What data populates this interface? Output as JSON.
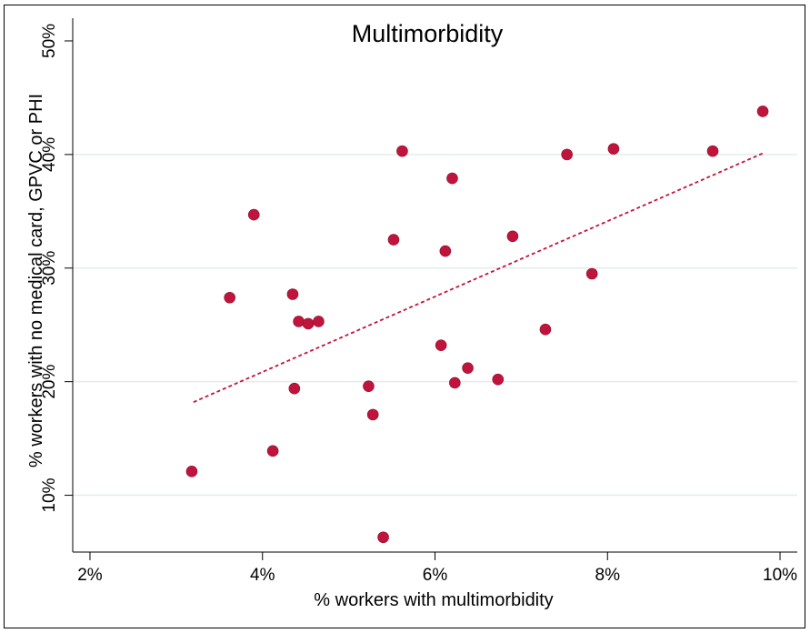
{
  "chart_data": {
    "type": "scatter",
    "title": "Multimorbidity",
    "xlabel": "% workers with multimorbidity",
    "ylabel": "% workers with no medical card, GPVC or PHI",
    "xlim": [
      1.8,
      10.2
    ],
    "ylim": [
      5,
      52
    ],
    "x_ticks": [
      2,
      4,
      6,
      8,
      10
    ],
    "x_tick_labels": [
      "2%",
      "4%",
      "6%",
      "8%",
      "10%"
    ],
    "y_ticks": [
      10,
      20,
      30,
      40,
      50
    ],
    "y_tick_labels": [
      "10%",
      "20%",
      "30%",
      "40%",
      "50%"
    ],
    "grid": "horizontal",
    "legend": "none",
    "colors": {
      "points": "#c0143c",
      "fit_line": "#c0143c",
      "grid": "#e4ecec"
    },
    "fit_line": {
      "x": [
        3.2,
        9.8
      ],
      "y": [
        18.2,
        40.1
      ]
    },
    "points": [
      {
        "x": 3.18,
        "y": 12.1
      },
      {
        "x": 3.62,
        "y": 27.4
      },
      {
        "x": 3.9,
        "y": 34.7
      },
      {
        "x": 4.12,
        "y": 13.9
      },
      {
        "x": 4.35,
        "y": 27.7
      },
      {
        "x": 4.37,
        "y": 19.4
      },
      {
        "x": 4.42,
        "y": 25.3
      },
      {
        "x": 4.53,
        "y": 25.1
      },
      {
        "x": 4.65,
        "y": 25.3
      },
      {
        "x": 5.23,
        "y": 19.6
      },
      {
        "x": 5.28,
        "y": 17.1
      },
      {
        "x": 5.4,
        "y": 6.3
      },
      {
        "x": 5.52,
        "y": 32.5
      },
      {
        "x": 5.62,
        "y": 40.3
      },
      {
        "x": 6.07,
        "y": 23.2
      },
      {
        "x": 6.12,
        "y": 31.5
      },
      {
        "x": 6.2,
        "y": 37.9
      },
      {
        "x": 6.23,
        "y": 19.9
      },
      {
        "x": 6.38,
        "y": 21.2
      },
      {
        "x": 6.73,
        "y": 20.2
      },
      {
        "x": 6.9,
        "y": 32.8
      },
      {
        "x": 7.28,
        "y": 24.6
      },
      {
        "x": 7.53,
        "y": 40.0
      },
      {
        "x": 7.82,
        "y": 29.5
      },
      {
        "x": 8.07,
        "y": 40.5
      },
      {
        "x": 9.22,
        "y": 40.3
      },
      {
        "x": 9.8,
        "y": 43.8
      }
    ]
  }
}
